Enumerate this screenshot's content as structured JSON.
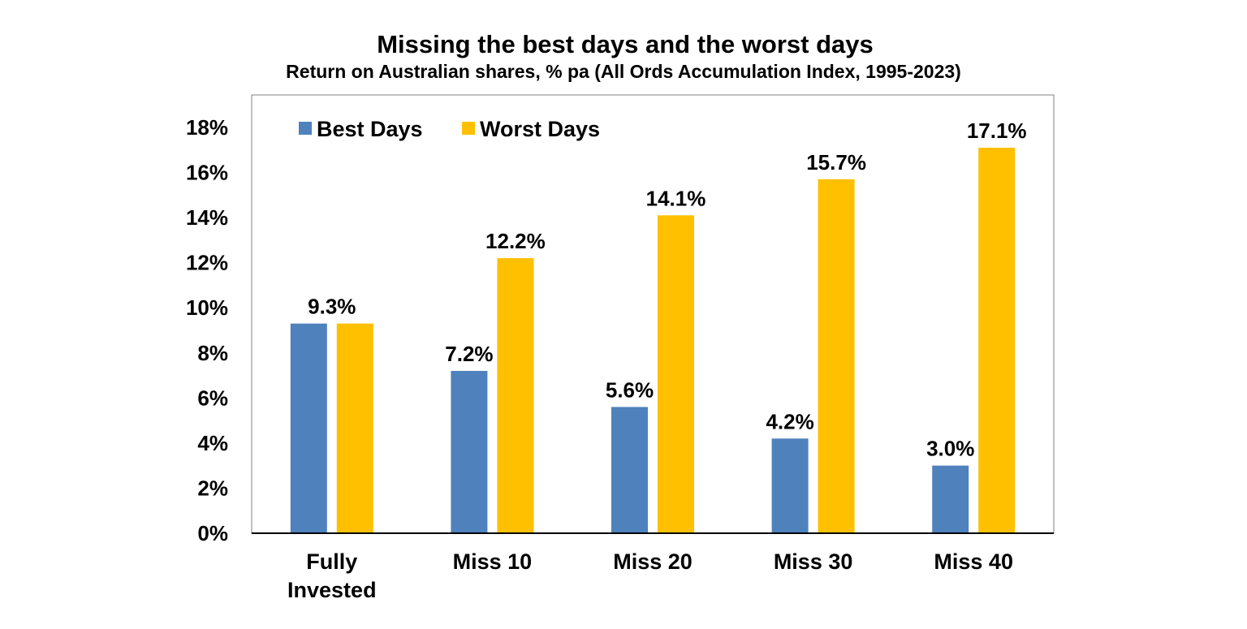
{
  "chart_data": {
    "type": "bar",
    "title": "Missing the best days and the worst days",
    "subtitle": "Return on Australian shares, % pa (All Ords Accumulation Index, 1995-2023)",
    "xlabel": "",
    "ylabel": "",
    "categories": [
      [
        "Fully",
        "Invested"
      ],
      [
        "Miss 10"
      ],
      [
        "Miss 20"
      ],
      [
        "Miss 30"
      ],
      [
        "Miss 40"
      ]
    ],
    "series": [
      {
        "name": "Best Days",
        "color": "#4f81bd",
        "values": [
          9.3,
          7.2,
          5.6,
          4.2,
          3.0
        ],
        "labels": [
          "",
          "7.2%",
          "5.6%",
          "4.2%",
          "3.0%"
        ]
      },
      {
        "name": "Worst Days",
        "color": "#ffc000",
        "values": [
          9.3,
          12.2,
          14.1,
          15.7,
          17.1
        ],
        "labels": [
          "",
          "12.2%",
          "14.1%",
          "15.7%",
          "17.1%"
        ]
      }
    ],
    "group_labels": [
      "9.3%",
      "",
      "",
      "",
      ""
    ],
    "ylim": [
      0,
      19.5
    ],
    "yticks": [
      0,
      2,
      4,
      6,
      8,
      10,
      12,
      14,
      16,
      18
    ],
    "ytick_labels": [
      "0%",
      "2%",
      "4%",
      "6%",
      "8%",
      "10%",
      "12%",
      "14%",
      "16%",
      "18%"
    ],
    "grid": false,
    "legend": "top-left"
  }
}
